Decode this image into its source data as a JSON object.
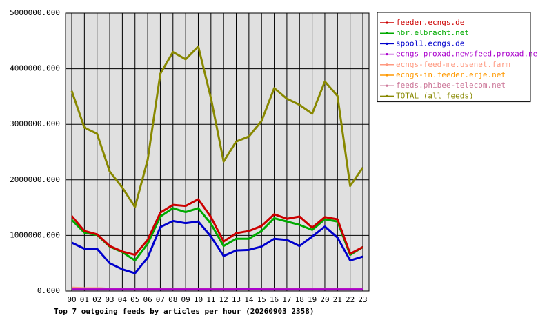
{
  "chart_data": {
    "type": "line",
    "title": "Top 7 outgoing feeds by articles per hour (20260903 2358)",
    "categories": [
      "00",
      "01",
      "02",
      "03",
      "04",
      "05",
      "06",
      "07",
      "08",
      "09",
      "10",
      "11",
      "12",
      "13",
      "14",
      "15",
      "16",
      "17",
      "18",
      "19",
      "20",
      "21",
      "22",
      "23"
    ],
    "ylim": [
      0,
      5000000
    ],
    "yticks": [
      {
        "value": 0,
        "label": "0.000"
      },
      {
        "value": 1000000,
        "label": "1000000.000"
      },
      {
        "value": 2000000,
        "label": "2000000.000"
      },
      {
        "value": 3000000,
        "label": "3000000.000"
      },
      {
        "value": 4000000,
        "label": "4000000.000"
      },
      {
        "value": 5000000,
        "label": "5000000.000"
      }
    ],
    "grid": true,
    "legend": "right",
    "series": [
      {
        "name": "feeder.ecngs.de",
        "color": "#cc0000",
        "values": [
          1350000,
          1080000,
          1020000,
          810000,
          710000,
          650000,
          920000,
          1410000,
          1550000,
          1530000,
          1650000,
          1330000,
          890000,
          1040000,
          1080000,
          1170000,
          1380000,
          1300000,
          1340000,
          1140000,
          1330000,
          1290000,
          670000,
          790000
        ]
      },
      {
        "name": "nbr.elbracht.net",
        "color": "#00aa00",
        "values": [
          1280000,
          1050000,
          1010000,
          800000,
          700000,
          550000,
          850000,
          1340000,
          1490000,
          1420000,
          1490000,
          1210000,
          810000,
          940000,
          940000,
          1080000,
          1310000,
          1250000,
          1190000,
          1100000,
          1290000,
          1250000,
          650000,
          790000
        ]
      },
      {
        "name": "spool1.ecngs.de",
        "color": "#0000cc",
        "values": [
          870000,
          760000,
          760000,
          500000,
          390000,
          320000,
          600000,
          1150000,
          1260000,
          1220000,
          1250000,
          980000,
          630000,
          730000,
          740000,
          800000,
          940000,
          920000,
          810000,
          980000,
          1160000,
          960000,
          550000,
          620000
        ]
      },
      {
        "name": "ecngs-proxad.newsfeed.proxad.net",
        "color": "#aa00cc",
        "values": [
          30000,
          30000,
          30000,
          30000,
          30000,
          30000,
          30000,
          30000,
          30000,
          30000,
          30000,
          30000,
          30000,
          30000,
          40000,
          30000,
          30000,
          30000,
          30000,
          30000,
          30000,
          30000,
          30000,
          30000
        ]
      },
      {
        "name": "ecngs-feed-me.usenet.farm",
        "color": "#ff9980",
        "values": [
          60000,
          50000,
          50000,
          40000,
          40000,
          40000,
          40000,
          40000,
          40000,
          40000,
          40000,
          40000,
          40000,
          40000,
          40000,
          40000,
          40000,
          40000,
          40000,
          40000,
          40000,
          40000,
          40000,
          40000
        ]
      },
      {
        "name": "ecngs-in.feeder.erje.net",
        "color": "#ff9900",
        "values": [
          40000,
          40000,
          40000,
          40000,
          40000,
          40000,
          40000,
          40000,
          40000,
          40000,
          40000,
          40000,
          40000,
          40000,
          40000,
          40000,
          40000,
          40000,
          40000,
          40000,
          40000,
          40000,
          40000,
          40000
        ]
      },
      {
        "name": "feeds.phibee-telecom.net",
        "color": "#cc7799",
        "values": [
          50000,
          50000,
          50000,
          40000,
          40000,
          40000,
          40000,
          40000,
          40000,
          40000,
          40000,
          40000,
          40000,
          40000,
          40000,
          40000,
          40000,
          40000,
          40000,
          40000,
          40000,
          40000,
          40000,
          40000
        ]
      },
      {
        "name": "TOTAL (all feeds)",
        "color": "#888800",
        "values": [
          3600000,
          2940000,
          2830000,
          2150000,
          1860000,
          1510000,
          2360000,
          3910000,
          4300000,
          4170000,
          4400000,
          3470000,
          2330000,
          2690000,
          2780000,
          3060000,
          3650000,
          3460000,
          3350000,
          3190000,
          3770000,
          3510000,
          1890000,
          2220000
        ]
      }
    ]
  }
}
